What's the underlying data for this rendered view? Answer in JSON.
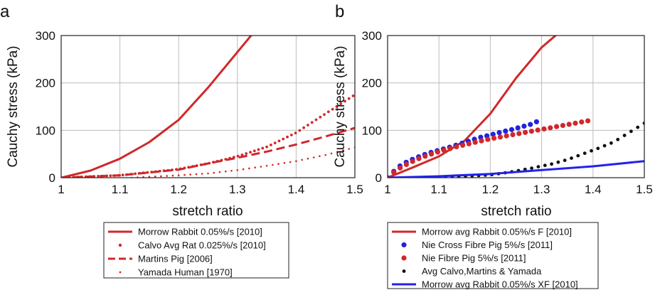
{
  "chart_data": [
    {
      "panel": "a",
      "type": "line",
      "xlabel": "stretch ratio",
      "ylabel": "Cauchy stress (kPa)",
      "xlim": [
        1,
        1.5
      ],
      "ylim": [
        0,
        300
      ],
      "xticks": [
        "1",
        "1.1",
        "1.2",
        "1.3",
        "1.4",
        "1.5"
      ],
      "yticks": [
        "0",
        "100",
        "200",
        "300"
      ],
      "grid": true,
      "legend_position": "below",
      "series": [
        {
          "name": "Morrow Rabbit 0.05%/s [2010]",
          "style": "solid",
          "color": "#d0282b",
          "x": [
            1.0,
            1.05,
            1.1,
            1.15,
            1.2,
            1.25,
            1.3,
            1.33
          ],
          "y": [
            0,
            15,
            40,
            75,
            122,
            190,
            265,
            310
          ]
        },
        {
          "name": "Calvo Avg Rat 0.025%/s [2010]",
          "style": "dotted-bold",
          "color": "#d0282b",
          "x": [
            1.0,
            1.1,
            1.2,
            1.25,
            1.3,
            1.35,
            1.4,
            1.45,
            1.5
          ],
          "y": [
            0,
            5,
            18,
            30,
            45,
            65,
            95,
            135,
            175
          ]
        },
        {
          "name": "Martins Pig [2006]",
          "style": "dashed",
          "color": "#d0282b",
          "x": [
            1.0,
            1.1,
            1.2,
            1.25,
            1.3,
            1.35,
            1.4,
            1.45,
            1.5
          ],
          "y": [
            0,
            5,
            17,
            30,
            42,
            55,
            70,
            87,
            105
          ]
        },
        {
          "name": "Yamada Human [1970]",
          "style": "dotted",
          "color": "#d0282b",
          "x": [
            1.12,
            1.15,
            1.2,
            1.25,
            1.3,
            1.35,
            1.4,
            1.45,
            1.5
          ],
          "y": [
            0,
            2,
            5,
            9,
            16,
            25,
            35,
            48,
            64
          ]
        }
      ]
    },
    {
      "panel": "b",
      "type": "line",
      "xlabel": "stretch ratio",
      "ylabel": "Cauchy stress (kPa)",
      "xlim": [
        1,
        1.5
      ],
      "ylim": [
        0,
        300
      ],
      "xticks": [
        "1",
        "1.1",
        "1.2",
        "1.3",
        "1.4",
        "1.5"
      ],
      "yticks": [
        "0",
        "100",
        "200",
        "300"
      ],
      "grid": true,
      "legend_position": "below",
      "series": [
        {
          "name": "Morrow  avg Rabbit 0.05%/s F [2010]",
          "style": "solid",
          "color": "#d0282b",
          "x": [
            1.0,
            1.05,
            1.1,
            1.15,
            1.2,
            1.25,
            1.3,
            1.34
          ],
          "y": [
            0,
            22,
            45,
            78,
            135,
            210,
            275,
            312
          ]
        },
        {
          "name": "Nie Cross Fibre Pig 5%/s [2011]",
          "style": "marker",
          "color": "#2222dd",
          "x": [
            1.0,
            1.02,
            1.04,
            1.06,
            1.08,
            1.1,
            1.12,
            1.14,
            1.16,
            1.18,
            1.2,
            1.22,
            1.24,
            1.26,
            1.28,
            1.29
          ],
          "y": [
            0,
            22,
            35,
            44,
            52,
            58,
            64,
            71,
            78,
            85,
            90,
            96,
            101,
            107,
            113,
            118
          ]
        },
        {
          "name": "Nie Fibre Pig 5%/s [2011]",
          "style": "marker",
          "color": "#d0282b",
          "x": [
            1.0,
            1.02,
            1.04,
            1.06,
            1.08,
            1.1,
            1.12,
            1.14,
            1.16,
            1.18,
            1.2,
            1.22,
            1.24,
            1.26,
            1.28,
            1.3,
            1.32,
            1.34,
            1.36,
            1.38,
            1.39
          ],
          "y": [
            0,
            18,
            30,
            40,
            48,
            55,
            61,
            67,
            72,
            77,
            82,
            86,
            90,
            94,
            98,
            102,
            106,
            110,
            114,
            118,
            120
          ]
        },
        {
          "name": "Avg Calvo,Martins & Yamada",
          "style": "marker",
          "color": "#111111",
          "x": [
            1.1,
            1.15,
            1.2,
            1.24,
            1.28,
            1.32,
            1.35,
            1.38,
            1.41,
            1.44,
            1.47,
            1.5
          ],
          "y": [
            1,
            3,
            6,
            12,
            20,
            29,
            38,
            50,
            62,
            75,
            95,
            115
          ]
        },
        {
          "name": "Morrow  avg Rabbit 0.05%/s XF [2010]",
          "style": "solid",
          "color": "#2222ee",
          "x": [
            1.0,
            1.1,
            1.2,
            1.3,
            1.4,
            1.5
          ],
          "y": [
            0,
            3,
            8,
            16,
            24,
            35
          ]
        }
      ]
    }
  ]
}
